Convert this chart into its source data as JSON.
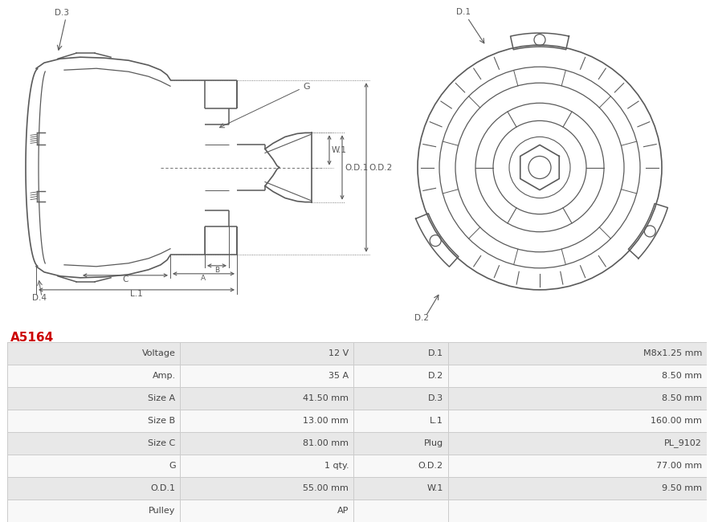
{
  "title": "A5164",
  "title_color": "#cc0000",
  "bg_color": "#ffffff",
  "table_row_bg1": "#e8e8e8",
  "table_row_bg2": "#f8f8f8",
  "table_border_color": "#cccccc",
  "rows": [
    [
      "Voltage",
      "12 V",
      "D.1",
      "M8x1.25 mm"
    ],
    [
      "Amp.",
      "35 A",
      "D.2",
      "8.50 mm"
    ],
    [
      "Size A",
      "41.50 mm",
      "D.3",
      "8.50 mm"
    ],
    [
      "Size B",
      "13.00 mm",
      "L.1",
      "160.00 mm"
    ],
    [
      "Size C",
      "81.00 mm",
      "Plug",
      "PL_9102"
    ],
    [
      "G",
      "1 qty.",
      "O.D.2",
      "77.00 mm"
    ],
    [
      "O.D.1",
      "55.00 mm",
      "W.1",
      "9.50 mm"
    ],
    [
      "Pulley",
      "AP",
      "",
      ""
    ]
  ],
  "lc": "#5a5a5a",
  "dc": "#5a5a5a",
  "font_size_table": 8.0,
  "font_size_title": 11
}
